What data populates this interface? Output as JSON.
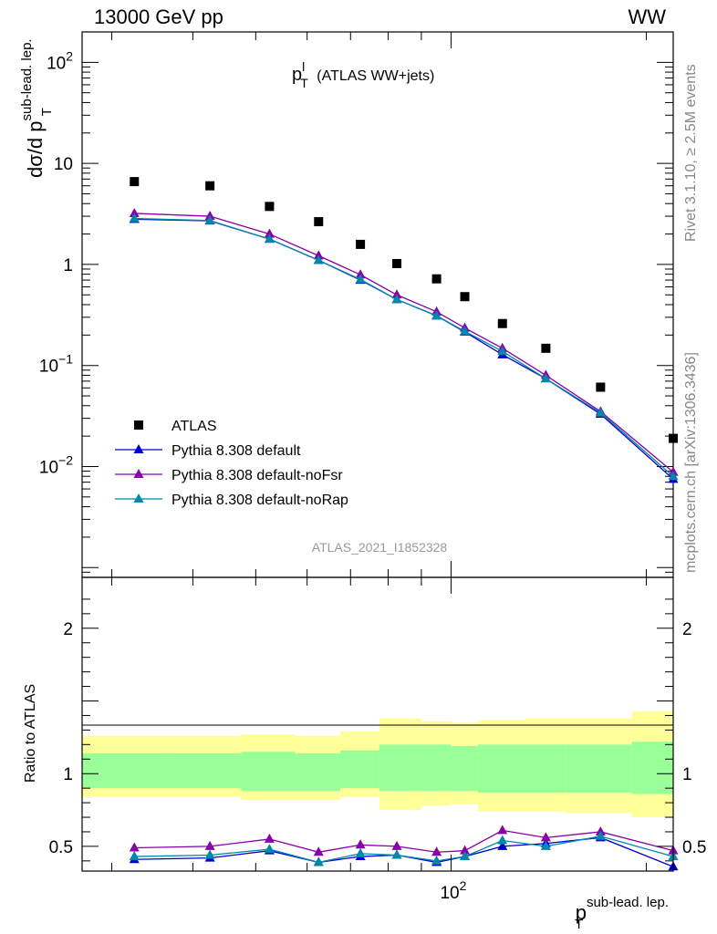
{
  "header": {
    "left": "13000 GeV pp",
    "right": "WW"
  },
  "side_labels": {
    "rivet": "Rivet 3.1.10, ≥ 2.5M events",
    "mcplots": "mcplots.cern.ch [arXiv:1306.3436]"
  },
  "analysis_id": "ATLAS_2021_I1852328",
  "colors": {
    "data": "#000000",
    "default": "#0000cc",
    "noFsr": "#8800aa",
    "noRap": "#0088aa",
    "band_outer": "#ffff99",
    "band_inner": "#99ff99"
  },
  "chart_data": [
    {
      "type": "scatter",
      "panel": "main",
      "title": "p_T^l (ATLAS WW+jets)",
      "title_parts": {
        "main": "p",
        "sup": "l",
        "sub": "T",
        "rest": " (ATLAS WW+jets)"
      },
      "ylabel_parts": {
        "main": "dσ/d p",
        "sup": "sub-lead. lep.",
        "sub": "T"
      },
      "y_scale": "log",
      "ylim": [
        0.0008,
        200
      ],
      "xlim": [
        27,
        220
      ],
      "x_scale": "log",
      "y_ticks": [
        {
          "value": 0.01,
          "base": "10",
          "exp": "−2"
        },
        {
          "value": 0.1,
          "base": "10",
          "exp": "−1"
        },
        {
          "value": 1,
          "base": "1",
          "exp": ""
        },
        {
          "value": 10,
          "base": "10",
          "exp": ""
        },
        {
          "value": 100,
          "base": "10",
          "exp": "2"
        }
      ],
      "legend": [
        {
          "key": "data",
          "label": "ATLAS",
          "marker": "square"
        },
        {
          "key": "default",
          "label": "Pythia 8.308 default",
          "marker": "triangle"
        },
        {
          "key": "noFsr",
          "label": "Pythia 8.308 default-noFsr",
          "marker": "triangle"
        },
        {
          "key": "noRap",
          "label": "Pythia 8.308 default-noRap",
          "marker": "triangle"
        }
      ],
      "x": [
        32.5,
        42.5,
        52.5,
        62.5,
        72.5,
        82.5,
        95,
        105,
        120,
        140,
        170,
        220
      ],
      "series": [
        {
          "key": "data",
          "name": "ATLAS",
          "values": [
            6.6,
            6.0,
            3.75,
            2.65,
            1.58,
            1.02,
            0.72,
            0.48,
            0.26,
            0.148,
            0.061,
            0.019
          ]
        },
        {
          "key": "default",
          "name": "Pythia 8.308 default",
          "values": [
            2.8,
            2.7,
            1.78,
            1.1,
            0.7,
            0.45,
            0.31,
            0.215,
            0.128,
            0.074,
            0.033,
            0.0075
          ]
        },
        {
          "key": "noFsr",
          "name": "Pythia 8.308 default-noFsr",
          "values": [
            3.2,
            3.0,
            2.0,
            1.22,
            0.79,
            0.5,
            0.34,
            0.235,
            0.148,
            0.08,
            0.035,
            0.0088
          ]
        },
        {
          "key": "noRap",
          "name": "Pythia 8.308 default-noRap",
          "values": [
            2.85,
            2.72,
            1.78,
            1.1,
            0.71,
            0.45,
            0.31,
            0.218,
            0.138,
            0.074,
            0.034,
            0.008
          ]
        }
      ]
    },
    {
      "type": "line",
      "panel": "ratio",
      "ylabel": "Ratio to ATLAS",
      "ylim": [
        0.33,
        2.35
      ],
      "xlim": [
        27,
        220
      ],
      "x_scale": "log",
      "y_ticks": [
        0.5,
        1,
        1.5,
        2
      ],
      "y_tick_labels": [
        "0.5",
        "1",
        "2"
      ],
      "x_tick_label": {
        "value": 100,
        "base": "10",
        "exp": "2"
      },
      "xlabel_parts": {
        "main": "p",
        "sup": "sub-lead. lep.",
        "sub": "T"
      },
      "bin_edges": [
        27,
        37.5,
        47.5,
        57.5,
        67.5,
        77.5,
        90,
        100,
        110,
        130,
        150,
        190,
        250
      ],
      "band_outer": [
        [
          0.84,
          1.26
        ],
        [
          0.84,
          1.26
        ],
        [
          0.82,
          1.27
        ],
        [
          0.82,
          1.26
        ],
        [
          0.84,
          1.29
        ],
        [
          0.75,
          1.38
        ],
        [
          0.78,
          1.36
        ],
        [
          0.79,
          1.35
        ],
        [
          0.74,
          1.37
        ],
        [
          0.74,
          1.38
        ],
        [
          0.73,
          1.38
        ],
        [
          0.7,
          1.43
        ]
      ],
      "band_inner": [
        [
          0.9,
          1.14
        ],
        [
          0.9,
          1.14
        ],
        [
          0.88,
          1.15
        ],
        [
          0.88,
          1.14
        ],
        [
          0.9,
          1.16
        ],
        [
          0.88,
          1.2
        ],
        [
          0.88,
          1.2
        ],
        [
          0.88,
          1.19
        ],
        [
          0.87,
          1.2
        ],
        [
          0.87,
          1.2
        ],
        [
          0.87,
          1.2
        ],
        [
          0.86,
          1.22
        ]
      ],
      "x": [
        32.5,
        42.5,
        52.5,
        62.5,
        72.5,
        82.5,
        95,
        105,
        120,
        140,
        170,
        220
      ],
      "series": [
        {
          "key": "default",
          "name": "Pythia 8.308 default",
          "values": [
            0.41,
            0.42,
            0.47,
            0.39,
            0.43,
            0.44,
            0.39,
            0.43,
            0.5,
            0.52,
            0.56,
            0.36
          ]
        },
        {
          "key": "noFsr",
          "name": "Pythia 8.308 default-noFsr",
          "values": [
            0.49,
            0.5,
            0.55,
            0.46,
            0.51,
            0.5,
            0.46,
            0.47,
            0.61,
            0.56,
            0.6,
            0.47
          ]
        },
        {
          "key": "noRap",
          "name": "Pythia 8.308 default-noRap",
          "values": [
            0.43,
            0.44,
            0.48,
            0.39,
            0.45,
            0.44,
            0.4,
            0.43,
            0.54,
            0.5,
            0.57,
            0.43
          ]
        }
      ]
    }
  ]
}
